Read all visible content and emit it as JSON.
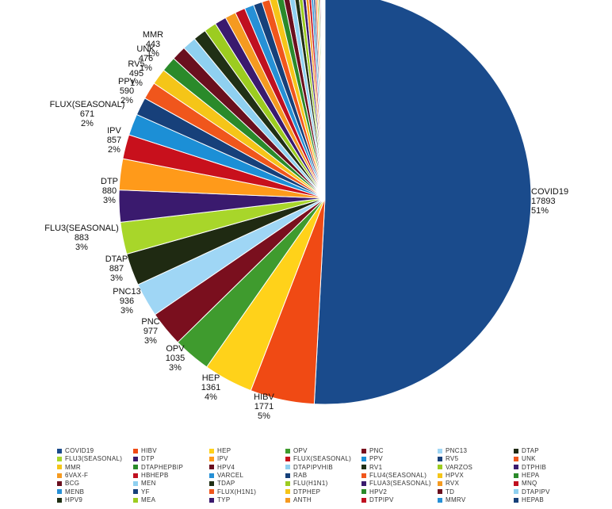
{
  "chart_data": {
    "type": "pie",
    "title": "",
    "slices": [
      {
        "label": "COVID19",
        "value": 17893,
        "pct": "51%",
        "color": "#1a4b8c"
      },
      {
        "label": "HIBV",
        "value": 1771,
        "pct": "5%",
        "color": "#f04a14"
      },
      {
        "label": "HEP",
        "value": 1361,
        "pct": "4%",
        "color": "#ffd21a"
      },
      {
        "label": "OPV",
        "value": 1035,
        "pct": "3%",
        "color": "#3f9b2e"
      },
      {
        "label": "PNC",
        "value": 977,
        "pct": "3%",
        "color": "#7a0f1e"
      },
      {
        "label": "PNC13",
        "value": 936,
        "pct": "3%",
        "color": "#9fd6f5"
      },
      {
        "label": "DTAP",
        "value": 887,
        "pct": "3%",
        "color": "#1f2a12"
      },
      {
        "label": "FLU3(SEASONAL)",
        "value": 883,
        "pct": "3%",
        "color": "#a8d62a"
      },
      {
        "label": "DTP",
        "value": 880,
        "pct": "3%",
        "color": "#3a1a6e"
      },
      {
        "label": "IPV",
        "value": 857,
        "pct": "2%",
        "color": "#ff9a1a"
      },
      {
        "label": "FLUX(SEASONAL)",
        "value": 671,
        "pct": "2%",
        "color": "#c8101c"
      },
      {
        "label": "PPV",
        "value": 590,
        "pct": "2%",
        "color": "#1c8fd6"
      },
      {
        "label": "RV5",
        "value": 495,
        "pct": "1%",
        "color": "#17407a"
      },
      {
        "label": "UNK",
        "value": 476,
        "pct": "1%",
        "color": "#f0561c"
      },
      {
        "label": "MMR",
        "value": 443,
        "pct": "1%",
        "color": "#f5c518"
      },
      {
        "label": "DTAPHEPBIP",
        "value": 420,
        "pct": "",
        "color": "#2a8a2a"
      },
      {
        "label": "HPV4",
        "value": 400,
        "pct": "",
        "color": "#6a0f1e"
      },
      {
        "label": "DTAPIPVHIB",
        "value": 380,
        "pct": "",
        "color": "#8fd0f0"
      },
      {
        "label": "RV1",
        "value": 360,
        "pct": "",
        "color": "#203015"
      },
      {
        "label": "VARZOS",
        "value": 340,
        "pct": "",
        "color": "#9ccc20"
      },
      {
        "label": "DTPHIB",
        "value": 320,
        "pct": "",
        "color": "#3a1a6e"
      },
      {
        "label": "6VAX-F",
        "value": 300,
        "pct": "",
        "color": "#f59a20"
      },
      {
        "label": "HBHEPB",
        "value": 280,
        "pct": "",
        "color": "#c01020"
      },
      {
        "label": "VARCEL",
        "value": 260,
        "pct": "",
        "color": "#2690d6"
      },
      {
        "label": "RAB",
        "value": 240,
        "pct": "",
        "color": "#16407a"
      },
      {
        "label": "FLU4(SEASONAL)",
        "value": 220,
        "pct": "",
        "color": "#f0561c"
      },
      {
        "label": "HPVX",
        "value": 200,
        "pct": "",
        "color": "#f5c518"
      },
      {
        "label": "HEPA",
        "value": 180,
        "pct": "",
        "color": "#2a8a2a"
      },
      {
        "label": "BCG",
        "value": 160,
        "pct": "",
        "color": "#6a0f1e"
      },
      {
        "label": "MEN",
        "value": 140,
        "pct": "",
        "color": "#8fd0f0"
      },
      {
        "label": "TDAP",
        "value": 120,
        "pct": "",
        "color": "#203015"
      },
      {
        "label": "FLU(H1N1)",
        "value": 100,
        "pct": "",
        "color": "#9ccc20"
      },
      {
        "label": "FLUA3(SEASONAL)",
        "value": 90,
        "pct": "",
        "color": "#3a1a6e"
      },
      {
        "label": "RVX",
        "value": 80,
        "pct": "",
        "color": "#f59a20"
      },
      {
        "label": "MNQ",
        "value": 70,
        "pct": "",
        "color": "#c01020"
      },
      {
        "label": "MENB",
        "value": 60,
        "pct": "",
        "color": "#2690d6"
      },
      {
        "label": "YF",
        "value": 50,
        "pct": "",
        "color": "#16407a"
      },
      {
        "label": "FLUX(H1N1)",
        "value": 45,
        "pct": "",
        "color": "#f0561c"
      },
      {
        "label": "DTPHEP",
        "value": 40,
        "pct": "",
        "color": "#f5c518"
      },
      {
        "label": "HPV2",
        "value": 35,
        "pct": "",
        "color": "#2a8a2a"
      },
      {
        "label": "TD",
        "value": 30,
        "pct": "",
        "color": "#6a0f1e"
      },
      {
        "label": "DTAPIPV",
        "value": 25,
        "pct": "",
        "color": "#8fd0f0"
      },
      {
        "label": "HPV9",
        "value": 20,
        "pct": "",
        "color": "#203015"
      },
      {
        "label": "MEA",
        "value": 18,
        "pct": "",
        "color": "#9ccc20"
      },
      {
        "label": "TYP",
        "value": 16,
        "pct": "",
        "color": "#3a1a6e"
      },
      {
        "label": "ANTH",
        "value": 14,
        "pct": "",
        "color": "#f59a20"
      },
      {
        "label": "DTPIPV",
        "value": 12,
        "pct": "",
        "color": "#c01020"
      },
      {
        "label": "MMRV",
        "value": 10,
        "pct": "",
        "color": "#2690d6"
      },
      {
        "label": "HEPAB",
        "value": 8,
        "pct": "",
        "color": "#16407a"
      }
    ],
    "legend_position": "bottom"
  }
}
